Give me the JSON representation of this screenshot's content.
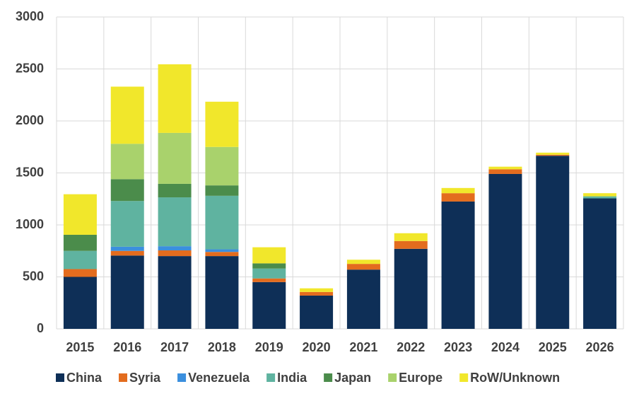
{
  "chart_data": {
    "type": "stacked-bar",
    "categories": [
      "2015",
      "2016",
      "2017",
      "2018",
      "2019",
      "2020",
      "2021",
      "2022",
      "2023",
      "2024",
      "2025",
      "2026"
    ],
    "series": [
      {
        "name": "China",
        "color": "#0e2f57",
        "values": [
          500,
          705,
          700,
          700,
          450,
          320,
          570,
          770,
          1225,
          1490,
          1665,
          1255
        ]
      },
      {
        "name": "Syria",
        "color": "#e36c1e",
        "values": [
          75,
          45,
          55,
          40,
          35,
          35,
          55,
          75,
          80,
          45,
          10,
          0
        ]
      },
      {
        "name": "Venezuela",
        "color": "#3b8fde",
        "values": [
          0,
          40,
          40,
          25,
          0,
          0,
          0,
          0,
          0,
          0,
          0,
          0
        ]
      },
      {
        "name": "India",
        "color": "#5fb3a0",
        "values": [
          175,
          440,
          470,
          515,
          95,
          0,
          0,
          0,
          0,
          0,
          0,
          20
        ]
      },
      {
        "name": "Japan",
        "color": "#4b8c4b",
        "values": [
          155,
          210,
          130,
          100,
          50,
          0,
          0,
          0,
          0,
          0,
          0,
          0
        ]
      },
      {
        "name": "Europe",
        "color": "#a9d26c",
        "values": [
          0,
          340,
          490,
          370,
          0,
          0,
          0,
          0,
          0,
          0,
          0,
          0
        ]
      },
      {
        "name": "RoW/Unknown",
        "color": "#f1e72b",
        "values": [
          390,
          550,
          660,
          435,
          155,
          35,
          40,
          75,
          50,
          25,
          20,
          30
        ]
      }
    ],
    "ylim": [
      0,
      3000
    ],
    "yticks": [
      0,
      500,
      1000,
      1500,
      2000,
      2500,
      3000
    ],
    "grid": true,
    "legend": "bottom"
  }
}
